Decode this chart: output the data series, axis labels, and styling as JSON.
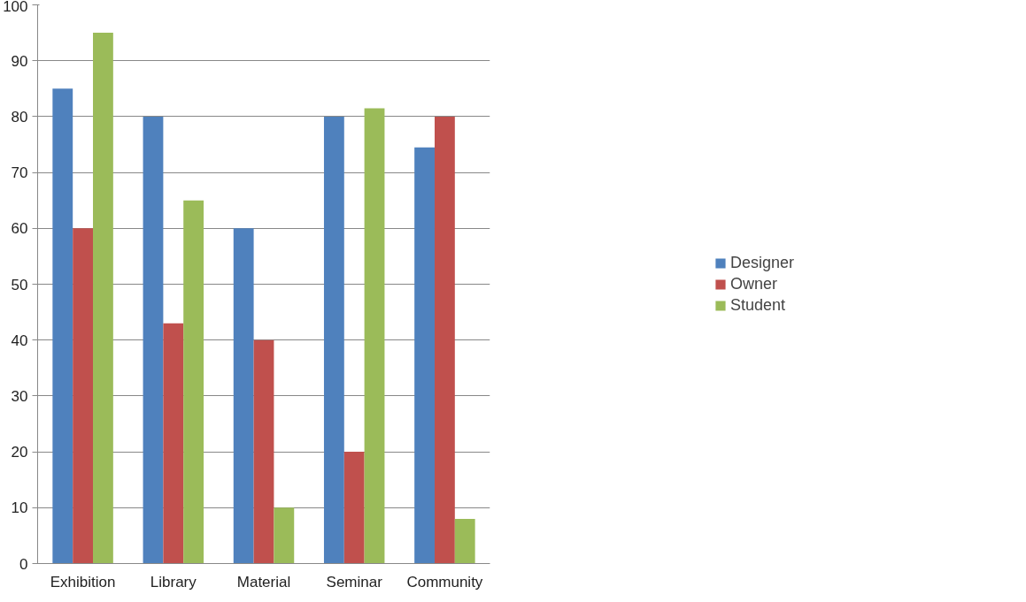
{
  "chart_data": {
    "type": "bar",
    "categories": [
      "Exhibition",
      "Library",
      "Material",
      "Seminar",
      "Community"
    ],
    "series": [
      {
        "name": "Designer",
        "color": "#4f81bd",
        "values": [
          85,
          80,
          60,
          80,
          74.5
        ]
      },
      {
        "name": "Owner",
        "color": "#c0504d",
        "values": [
          60,
          43,
          40,
          20,
          80
        ]
      },
      {
        "name": "Student",
        "color": "#9bbb59",
        "values": [
          95,
          65,
          10,
          81.5,
          8
        ]
      }
    ],
    "ylim": [
      0,
      100
    ],
    "yticks": [
      0,
      10,
      20,
      30,
      40,
      50,
      60,
      70,
      80,
      90,
      100
    ],
    "grid": "y",
    "legend": "right"
  }
}
